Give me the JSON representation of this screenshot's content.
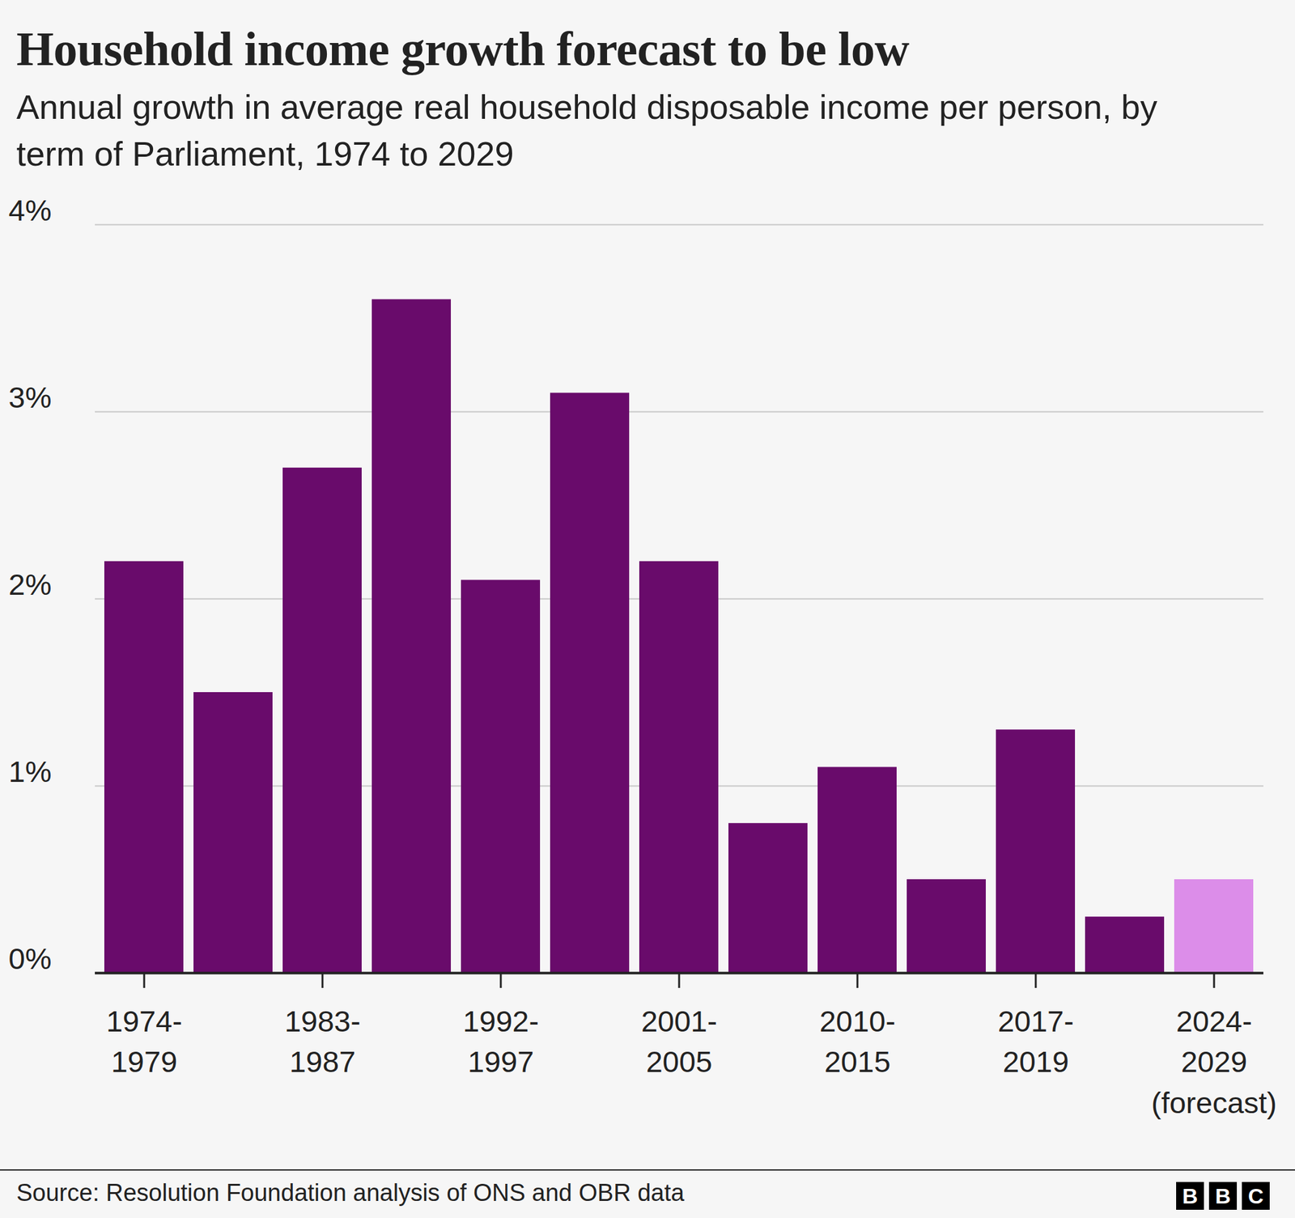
{
  "chart_data": {
    "type": "bar",
    "title": "Household income growth forecast to be low",
    "subtitle": "Annual growth in average real household disposable income per person, by term of Parliament, 1974 to 2029",
    "source": "Source: Resolution Foundation analysis of ONS and OBR data",
    "credit": "BBC",
    "categories": [
      "1974-1979",
      null,
      "1983-1987",
      null,
      "1992-1997",
      null,
      "2001-2005",
      null,
      "2010-2015",
      null,
      "2017-2019",
      null,
      "2024-2029 (forecast)"
    ],
    "values": [
      2.2,
      1.5,
      2.7,
      3.6,
      2.1,
      3.1,
      2.2,
      0.8,
      1.1,
      0.5,
      1.3,
      0.3,
      0.5
    ],
    "colors": [
      "#690b6b",
      "#690b6b",
      "#690b6b",
      "#690b6b",
      "#690b6b",
      "#690b6b",
      "#690b6b",
      "#690b6b",
      "#690b6b",
      "#690b6b",
      "#690b6b",
      "#690b6b",
      "#dc8de9"
    ],
    "ylim": [
      0,
      4
    ],
    "yticks": [
      {
        "value": 0,
        "label": "0%"
      },
      {
        "value": 1,
        "label": "1%"
      },
      {
        "value": 2,
        "label": "2%"
      },
      {
        "value": 3,
        "label": "3%"
      },
      {
        "value": 4,
        "label": "4%"
      }
    ],
    "grid": true
  }
}
